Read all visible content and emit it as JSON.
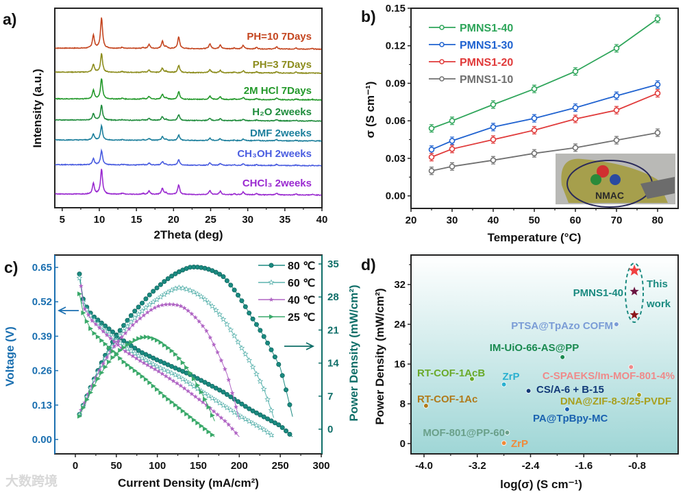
{
  "panels": {
    "a": "a)",
    "b": "b)",
    "c": "c)",
    "d": "d)"
  },
  "watermark": "大数跨境",
  "chart_data": [
    {
      "type": "line",
      "panel": "a",
      "xlabel": "2Theta (deg)",
      "ylabel": "Intensity (a.u.)",
      "xlim": [
        4,
        40
      ],
      "ylim": [
        0,
        100
      ],
      "xticks": [
        5,
        10,
        15,
        20,
        25,
        30,
        35,
        40
      ],
      "peaks": [
        [
          9.2,
          0.42
        ],
        [
          10.3,
          1.0
        ],
        [
          13.1,
          0.04
        ],
        [
          15.9,
          0.03
        ],
        [
          16.7,
          0.13
        ],
        [
          18.5,
          0.24
        ],
        [
          19.0,
          0.06
        ],
        [
          20.7,
          0.38
        ],
        [
          24.9,
          0.16
        ],
        [
          26.3,
          0.13
        ],
        [
          28.2,
          0.03
        ],
        [
          29.4,
          0.11
        ],
        [
          31.2,
          0.05
        ],
        [
          33.9,
          0.07
        ],
        [
          36.5,
          0.04
        ],
        [
          38.7,
          0.02
        ]
      ],
      "series": [
        {
          "name": "PH=10 7Days",
          "color": "#c4451f",
          "baseline": 80,
          "scale": 15.5
        },
        {
          "name": "PH=3 7Days",
          "color": "#8c8c1c",
          "baseline": 68,
          "scale": 9.3
        },
        {
          "name": "2M HCl 7Days",
          "color": "#23992a",
          "baseline": 54.6,
          "scale": 10.3
        },
        {
          "name": "H₂O 2weeks",
          "color": "#1f8c3c",
          "baseline": 44,
          "scale": 7.6
        },
        {
          "name": "DMF 2weeks",
          "color": "#1c7f9c",
          "baseline": 34,
          "scale": 7.2
        },
        {
          "name": "CH₃OH 2weeks",
          "color": "#4a5de0",
          "baseline": 21.6,
          "scale": 7.2
        },
        {
          "name": "CHCl₃ 2weeks",
          "color": "#9a2ad0",
          "baseline": 6.9,
          "scale": 12.7
        }
      ]
    },
    {
      "type": "line",
      "panel": "b",
      "xlabel": "Temperature (°C)",
      "ylabel": "σ (S cm⁻¹)",
      "xlim": [
        20,
        85
      ],
      "ylim": [
        -0.01,
        0.15
      ],
      "xticks": [
        20,
        30,
        40,
        50,
        60,
        70,
        80
      ],
      "yticks": [
        "0.00",
        "0.03",
        "0.06",
        "0.09",
        "0.12",
        "0.15"
      ],
      "x": [
        25,
        30,
        40,
        50,
        60,
        70,
        80
      ],
      "error": 0.003,
      "legend": "top-left",
      "inset_logo_text": "NMAC",
      "series": [
        {
          "name": "PMNS1-40",
          "color": "#2ea55a",
          "values": [
            0.054,
            0.06,
            0.073,
            0.0855,
            0.0995,
            0.118,
            0.1415
          ]
        },
        {
          "name": "PMNS1-30",
          "color": "#1f62d0",
          "values": [
            0.037,
            0.044,
            0.055,
            0.062,
            0.0705,
            0.08,
            0.089
          ]
        },
        {
          "name": "PMNS1-20",
          "color": "#e03a3a",
          "values": [
            0.031,
            0.0375,
            0.045,
            0.0525,
            0.0615,
            0.0685,
            0.082
          ]
        },
        {
          "name": "PMNS1-10",
          "color": "#707070",
          "values": [
            0.02,
            0.0235,
            0.0285,
            0.034,
            0.0385,
            0.0445,
            0.0505
          ]
        }
      ]
    },
    {
      "type": "line",
      "panel": "c",
      "xlabel": "Current Density (mA/cm²)",
      "ylabel_left": "Voltage (V)",
      "ylabel_right": "Power Density (mW/cm²)",
      "left_color": "#1a6fb0",
      "right_color": "#0f6e68",
      "xlim": [
        -25,
        300
      ],
      "ylim_left": [
        -0.065,
        0.7
      ],
      "ylim_right": [
        -5,
        36
      ],
      "xticks": [
        0,
        50,
        100,
        150,
        200,
        250,
        300
      ],
      "yticks_left": [
        "0.00",
        "0.13",
        "0.26",
        "0.39",
        "0.52",
        "0.65"
      ],
      "yticks_right": [
        0,
        7,
        14,
        21,
        28,
        35
      ],
      "legend": "top-right",
      "series": [
        {
          "name": "80 ℃",
          "color": "#1a8a80",
          "marker": "circle",
          "voltage": [
            [
              5,
              0.625
            ],
            [
              10,
              0.52
            ],
            [
              20,
              0.47
            ],
            [
              40,
              0.42
            ],
            [
              60,
              0.37
            ],
            [
              80,
              0.33
            ],
            [
              100,
              0.3
            ],
            [
              140,
              0.245
            ],
            [
              180,
              0.18
            ],
            [
              214,
              0.112
            ],
            [
              250,
              0.052
            ],
            [
              265,
              0.01
            ]
          ]
        },
        {
          "name": "60 ℃",
          "color": "#5cb3ae",
          "marker": "star",
          "voltage": [
            [
              5,
              0.61
            ],
            [
              10,
              0.51
            ],
            [
              20,
              0.46
            ],
            [
              40,
              0.4
            ],
            [
              60,
              0.35
            ],
            [
              80,
              0.31
            ],
            [
              100,
              0.275
            ],
            [
              125,
              0.24
            ],
            [
              160,
              0.17
            ],
            [
              200,
              0.09
            ],
            [
              230,
              0.037
            ],
            [
              242,
              0.01
            ]
          ]
        },
        {
          "name": "40 ℃",
          "color": "#b065c4",
          "marker": "smallstar",
          "voltage": [
            [
              7,
              0.58
            ],
            [
              10,
              0.5
            ],
            [
              20,
              0.45
            ],
            [
              40,
              0.39
            ],
            [
              60,
              0.335
            ],
            [
              80,
              0.295
            ],
            [
              100,
              0.26
            ],
            [
              130,
              0.2
            ],
            [
              160,
              0.13
            ],
            [
              185,
              0.063
            ],
            [
              200,
              0.01
            ]
          ]
        },
        {
          "name": "25 ℃",
          "color": "#3aa96a",
          "marker": "triangle",
          "voltage": [
            [
              5,
              0.55
            ],
            [
              10,
              0.47
            ],
            [
              20,
              0.41
            ],
            [
              40,
              0.35
            ],
            [
              60,
              0.29
            ],
            [
              85,
              0.23
            ],
            [
              110,
              0.16
            ],
            [
              140,
              0.085
            ],
            [
              170,
              0.01
            ]
          ]
        }
      ]
    },
    {
      "type": "scatter",
      "panel": "d",
      "xlabel": "log(σ) (S cm⁻¹)",
      "ylabel": "Power Density (mW/cm²)",
      "xlim": [
        -4.25,
        -0.3
      ],
      "ylim": [
        -2.5,
        37.5
      ],
      "xticks": [
        "-4.0",
        "-3.2",
        "-2.4",
        "-1.6",
        "-0.8"
      ],
      "yticks": [
        0,
        8,
        16,
        24,
        32
      ],
      "this_work_label": [
        "This",
        "work"
      ],
      "this_work_name": "PMNS1-40",
      "this_work_color": "#1a8a80",
      "this_work": [
        {
          "x": -0.84,
          "y": 34.8,
          "color": "#f04040"
        },
        {
          "x": -0.84,
          "y": 30.6,
          "color": "#6a1440"
        },
        {
          "x": -0.84,
          "y": 25.9,
          "color": "#8c1418"
        }
      ],
      "points": [
        {
          "label": "PTSA@TpAzo COFM",
          "x": -1.11,
          "y": 24.0,
          "color": "#7a9cd6"
        },
        {
          "label": "IM-UiO-66-AS@PP",
          "x": -1.92,
          "y": 17.4,
          "color": "#1a8a50"
        },
        {
          "label": "C-SPAEKS/Im-MOF-801-4%",
          "x": -0.89,
          "y": 15.4,
          "color": "#ef8a8a"
        },
        {
          "label": "RT-COF-1AcB",
          "x": -3.28,
          "y": 13.0,
          "color": "#6aaa2a"
        },
        {
          "label": "ZrP",
          "x": -2.8,
          "y": 11.9,
          "color": "#2ab0d0"
        },
        {
          "label": "CS/A-6 + B-15",
          "x": -2.43,
          "y": 10.6,
          "color": "#123a78"
        },
        {
          "label": "DNA@ZIF-8-3/25-PVDF",
          "x": -0.77,
          "y": 9.8,
          "color": "#a8a020"
        },
        {
          "label": "RT-COF-1Ac",
          "x": -3.97,
          "y": 7.6,
          "color": "#b07a1a"
        },
        {
          "label": "PA@TpBpy-MC",
          "x": -1.85,
          "y": 6.9,
          "color": "#1a62b0"
        },
        {
          "label": "MOF-801@PP-60",
          "x": -2.75,
          "y": 2.2,
          "color": "#6aa08a"
        },
        {
          "label": "ZrP",
          "x": -2.8,
          "y": 0.1,
          "color": "#f08a3a"
        }
      ]
    }
  ]
}
